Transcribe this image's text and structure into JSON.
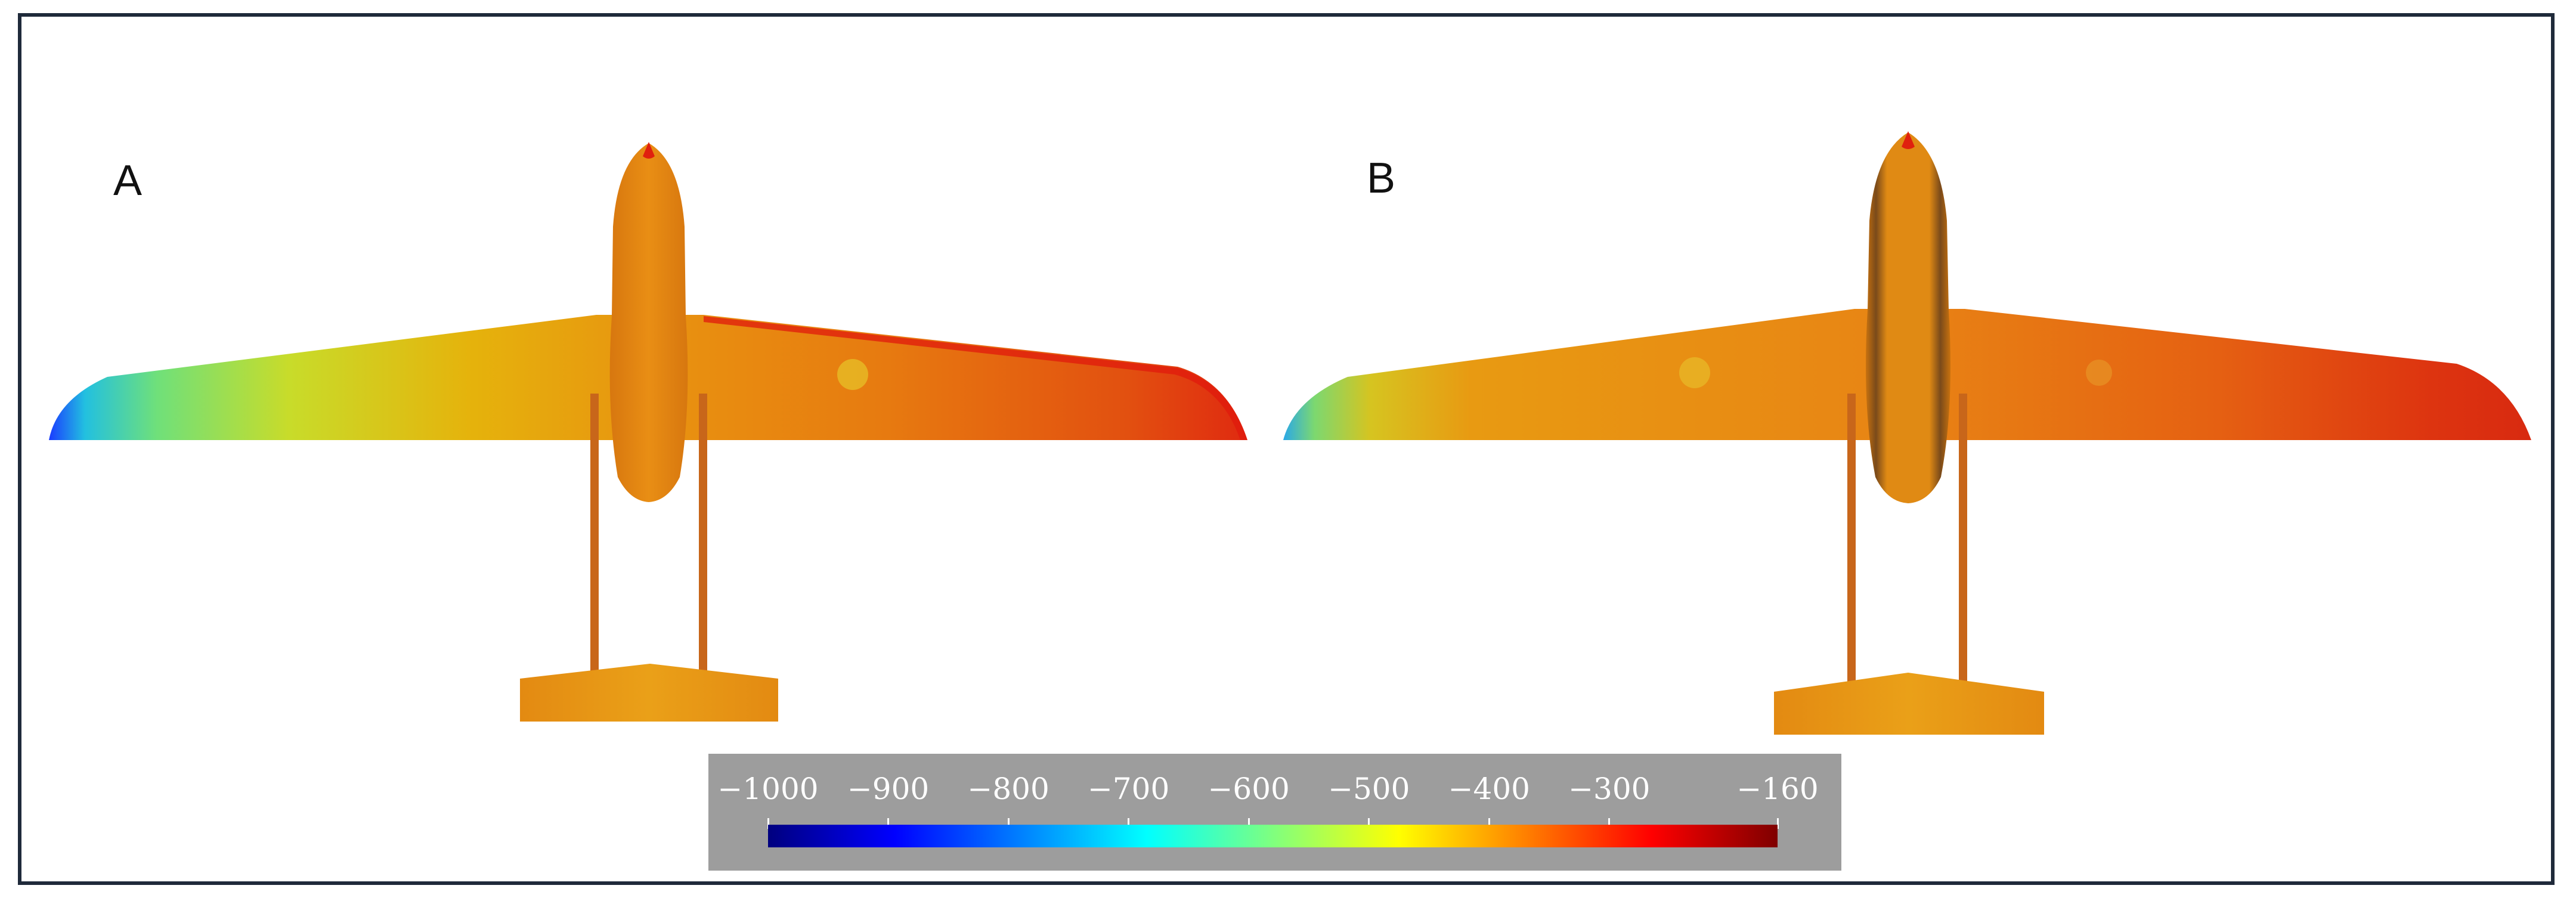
{
  "panels": [
    {
      "label": "A"
    },
    {
      "label": "B"
    }
  ],
  "colorbar": {
    "min": -1000,
    "max": -160,
    "ticks": [
      {
        "value": -1000,
        "label": "−1000"
      },
      {
        "value": -900,
        "label": "−900"
      },
      {
        "value": -800,
        "label": "−800"
      },
      {
        "value": -700,
        "label": "−700"
      },
      {
        "value": -600,
        "label": "−600"
      },
      {
        "value": -500,
        "label": "−500"
      },
      {
        "value": -400,
        "label": "−400"
      },
      {
        "value": -300,
        "label": "−300"
      },
      {
        "value": -160,
        "label": "−160"
      }
    ],
    "colormap": "jet",
    "colors": [
      "#00007f",
      "#0000ff",
      "#0080ff",
      "#00ffff",
      "#7fff7f",
      "#ffff00",
      "#ff8000",
      "#ff0000",
      "#7f0000"
    ]
  }
}
